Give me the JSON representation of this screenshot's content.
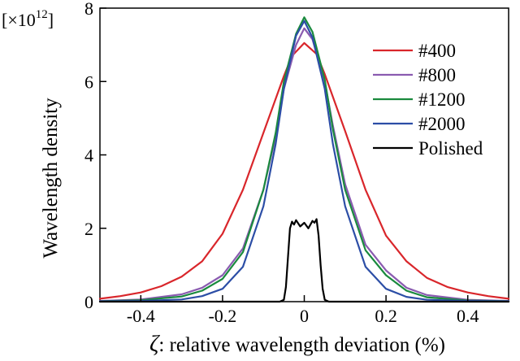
{
  "chart_data": {
    "type": "line",
    "title": "",
    "xlabel_symbol": "ζ",
    "xlabel": ": relative wavelength deviation (%)",
    "ylabel": "Wavelength density",
    "y_scale_prefix": "[×10",
    "y_scale_exp": "12",
    "y_scale_suffix": "]",
    "xlim": [
      -0.5,
      0.5
    ],
    "ylim": [
      0,
      8
    ],
    "x_ticks": [
      -0.4,
      -0.2,
      0,
      0.2,
      0.4
    ],
    "x_tick_labels": [
      "-0.4",
      "-0.2",
      "0",
      "0.2",
      "0.4"
    ],
    "y_ticks": [
      0,
      2,
      4,
      6,
      8
    ],
    "y_tick_labels": [
      "0",
      "2",
      "4",
      "6",
      "8"
    ],
    "grid": false,
    "legend_position": "right",
    "series": [
      {
        "name": "#400",
        "color": "#d9262b",
        "x": [
          -0.5,
          -0.45,
          -0.4,
          -0.35,
          -0.3,
          -0.25,
          -0.2,
          -0.15,
          -0.1,
          -0.05,
          -0.03,
          0,
          0.03,
          0.05,
          0.1,
          0.15,
          0.2,
          0.25,
          0.3,
          0.35,
          0.4,
          0.45,
          0.5
        ],
        "values": [
          0.08,
          0.15,
          0.25,
          0.42,
          0.68,
          1.1,
          1.85,
          3.05,
          4.6,
          6.15,
          6.7,
          7.05,
          6.75,
          6.2,
          4.65,
          3.05,
          1.8,
          1.1,
          0.65,
          0.4,
          0.25,
          0.15,
          0.08
        ]
      },
      {
        "name": "#800",
        "color": "#8a5bb0",
        "x": [
          -0.5,
          -0.4,
          -0.3,
          -0.25,
          -0.2,
          -0.15,
          -0.1,
          -0.07,
          -0.05,
          -0.02,
          0,
          0.02,
          0.05,
          0.07,
          0.1,
          0.15,
          0.2,
          0.25,
          0.3,
          0.4,
          0.5
        ],
        "values": [
          0.02,
          0.06,
          0.2,
          0.38,
          0.72,
          1.45,
          3.05,
          4.5,
          5.8,
          7.0,
          7.45,
          7.15,
          6.0,
          4.8,
          3.2,
          1.55,
          0.85,
          0.38,
          0.18,
          0.05,
          0.02
        ]
      },
      {
        "name": "#1200",
        "color": "#1a8a3e",
        "x": [
          -0.5,
          -0.4,
          -0.3,
          -0.25,
          -0.2,
          -0.15,
          -0.1,
          -0.07,
          -0.05,
          -0.02,
          0,
          0.02,
          0.05,
          0.07,
          0.1,
          0.15,
          0.2,
          0.25,
          0.3,
          0.4,
          0.5
        ],
        "values": [
          0.01,
          0.04,
          0.14,
          0.3,
          0.62,
          1.35,
          3.05,
          4.6,
          6.0,
          7.3,
          7.75,
          7.35,
          6.05,
          4.7,
          3.05,
          1.4,
          0.72,
          0.3,
          0.12,
          0.03,
          0.01
        ]
      },
      {
        "name": "#2000",
        "color": "#2c4ea6",
        "x": [
          -0.5,
          -0.4,
          -0.3,
          -0.25,
          -0.2,
          -0.15,
          -0.1,
          -0.07,
          -0.05,
          -0.02,
          0,
          0.02,
          0.05,
          0.07,
          0.1,
          0.15,
          0.2,
          0.25,
          0.3,
          0.4,
          0.5
        ],
        "values": [
          0.01,
          0.02,
          0.06,
          0.15,
          0.35,
          0.95,
          2.6,
          4.3,
          5.8,
          7.25,
          7.65,
          7.2,
          5.8,
          4.3,
          2.6,
          0.95,
          0.35,
          0.13,
          0.05,
          0.02,
          0.01
        ]
      },
      {
        "name": "Polished",
        "color": "#000000",
        "x": [
          -0.5,
          -0.06,
          -0.05,
          -0.045,
          -0.04,
          -0.035,
          -0.03,
          -0.025,
          -0.02,
          -0.01,
          0,
          0.01,
          0.02,
          0.025,
          0.03,
          0.035,
          0.04,
          0.045,
          0.05,
          0.06,
          0.5
        ],
        "values": [
          0.0,
          0.0,
          0.05,
          0.4,
          1.2,
          2.0,
          2.18,
          2.1,
          2.22,
          2.05,
          2.15,
          2.0,
          2.2,
          2.15,
          2.25,
          1.8,
          1.0,
          0.35,
          0.05,
          0.0,
          0.0
        ]
      }
    ]
  }
}
